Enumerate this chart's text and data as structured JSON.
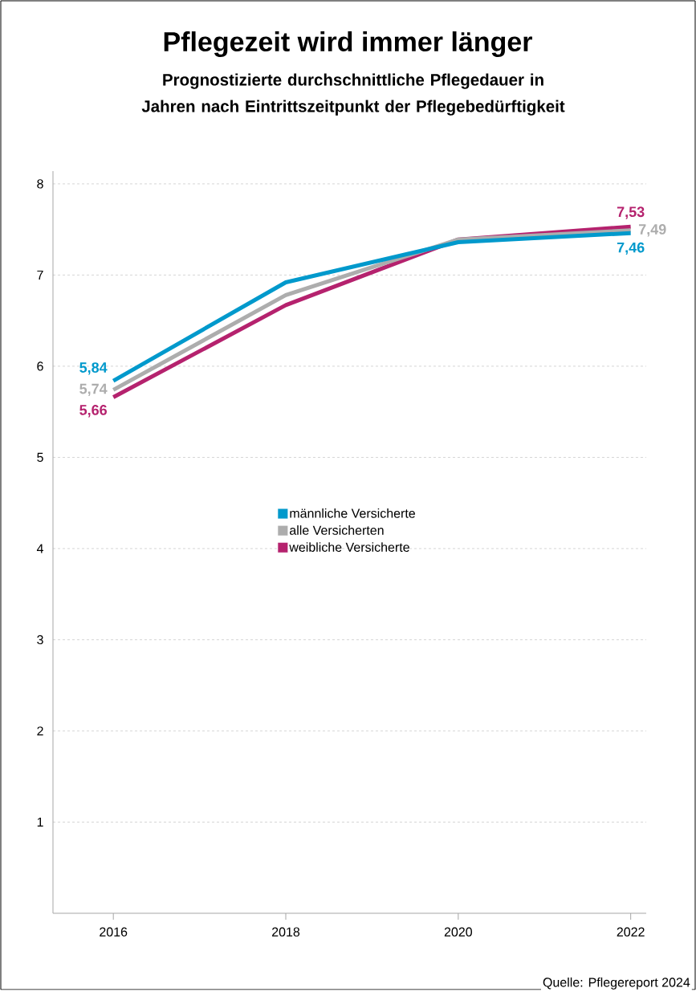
{
  "chart_data": {
    "type": "line",
    "title": "Pflegezeit wird immer länger",
    "subtitle": "Prognostizierte durchschnittliche Pflegedauer in Jahren nach Eintrittszeitpunkt der Pflegebedürftigkeit",
    "x": [
      2016,
      2018,
      2020,
      2022
    ],
    "series": [
      {
        "name": "männliche Versicherte",
        "color": "#0099cc",
        "values": [
          5.84,
          6.92,
          7.36,
          7.46
        ],
        "value_labels": [
          "5,84",
          null,
          null,
          "7,46"
        ]
      },
      {
        "name": "alle Versicherten",
        "color": "#adadad",
        "values": [
          5.74,
          6.78,
          7.39,
          7.49
        ],
        "value_labels": [
          "5,74",
          null,
          null,
          "7,49"
        ]
      },
      {
        "name": "weibliche Versicherte",
        "color": "#b5226e",
        "values": [
          5.66,
          6.67,
          7.39,
          7.53
        ],
        "value_labels": [
          "5,66",
          null,
          null,
          "7,53"
        ]
      }
    ],
    "xlim": [
      2015.3,
      2022.18
    ],
    "ylim": [
      0,
      8.14
    ],
    "xticks": [
      2016,
      2018,
      2020,
      2022
    ],
    "yticks": [
      1,
      2,
      3,
      4,
      5,
      6,
      7,
      8
    ],
    "grid": "y",
    "legend": "center",
    "marker": "none",
    "line_style": "solid",
    "annotations": [
      "Quelle: Pflegereport 2024"
    ]
  }
}
